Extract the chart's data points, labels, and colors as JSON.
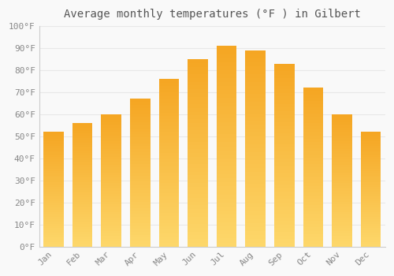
{
  "title": "Average monthly temperatures (°F ) in Gilbert",
  "months": [
    "Jan",
    "Feb",
    "Mar",
    "Apr",
    "May",
    "Jun",
    "Jul",
    "Aug",
    "Sep",
    "Oct",
    "Nov",
    "Dec"
  ],
  "values": [
    52,
    56,
    60,
    67,
    76,
    85,
    91,
    89,
    83,
    72,
    60,
    52
  ],
  "bar_color_top": "#F5A623",
  "bar_color_bottom": "#FDD76A",
  "ylim": [
    0,
    100
  ],
  "yticks": [
    0,
    10,
    20,
    30,
    40,
    50,
    60,
    70,
    80,
    90,
    100
  ],
  "ytick_labels": [
    "0°F",
    "10°F",
    "20°F",
    "30°F",
    "40°F",
    "50°F",
    "60°F",
    "70°F",
    "80°F",
    "90°F",
    "100°F"
  ],
  "background_color": "#f9f9f9",
  "grid_color": "#e8e8e8",
  "title_fontsize": 10,
  "tick_fontsize": 8,
  "xlabel_rotation": 45,
  "bar_width": 0.7,
  "n_segments": 50
}
